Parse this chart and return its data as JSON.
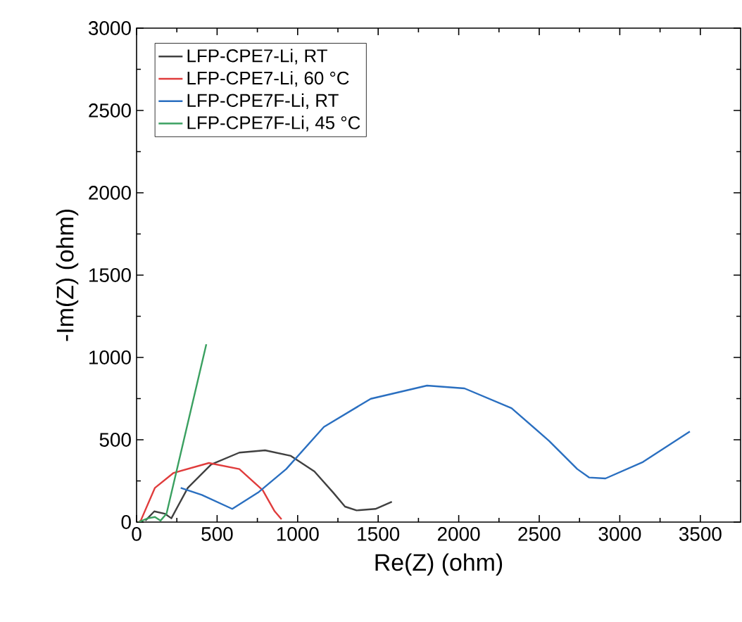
{
  "chart_data": {
    "type": "line",
    "xlabel": "Re(Z) (ohm)",
    "ylabel": "-Im(Z) (ohm)",
    "xlim": [
      0,
      3750
    ],
    "ylim": [
      0,
      3000
    ],
    "xticks": [
      0,
      500,
      1000,
      1500,
      2000,
      2500,
      3000,
      3500
    ],
    "yticks": [
      0,
      500,
      1000,
      1500,
      2000,
      2500,
      3000
    ],
    "legend": "top left",
    "grid": false,
    "marker": "none",
    "line_style": "solid",
    "series": [
      {
        "name": "LFP-CPE7-Li, RT",
        "color": "#404040",
        "x": [
          55,
          110,
          175,
          216,
          318,
          463,
          638,
          798,
          958,
          1104,
          1221,
          1294,
          1366,
          1483,
          1585
        ],
        "values": [
          9,
          65,
          51,
          23,
          208,
          350,
          422,
          436,
          402,
          308,
          179,
          94,
          71,
          80,
          123
        ]
      },
      {
        "name": "LFP-CPE7-Li, 60 °C",
        "color": "#e03c3c",
        "x": [
          12,
          26,
          114,
          230,
          449,
          638,
          783,
          857,
          900
        ],
        "values": [
          0,
          9,
          208,
          299,
          359,
          322,
          194,
          66,
          17
        ]
      },
      {
        "name": "LFP-CPE7F-Li, RT",
        "color": "#2a6fc0",
        "x": [
          274,
          405,
          594,
          754,
          929,
          1163,
          1454,
          1803,
          2036,
          2328,
          2561,
          2736,
          2809,
          2911,
          3144,
          3435
        ],
        "values": [
          208,
          165,
          80,
          179,
          322,
          578,
          749,
          829,
          812,
          692,
          493,
          322,
          271,
          265,
          365,
          550
        ]
      },
      {
        "name": "LFP-CPE7F-Li, 45 °C",
        "color": "#3aa060",
        "x": [
          12,
          70,
          114,
          149,
          186,
          433
        ],
        "values": [
          0,
          23,
          31,
          9,
          51,
          1080
        ]
      }
    ]
  }
}
